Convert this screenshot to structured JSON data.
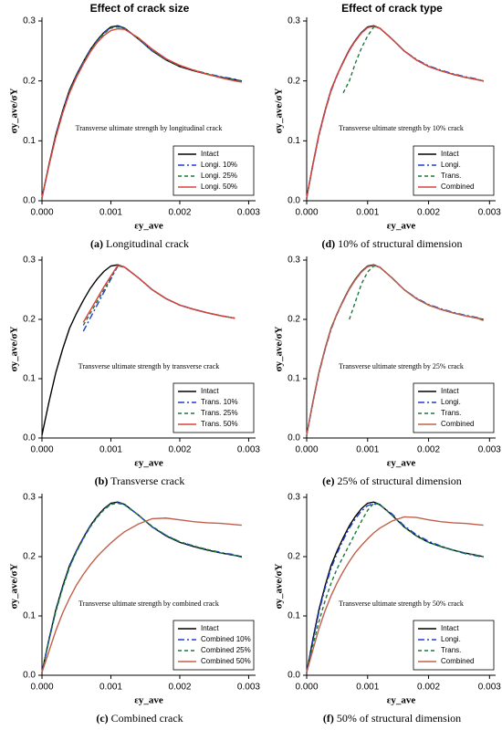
{
  "chart_data": [
    {
      "type": "line",
      "title": "Effect of crack size",
      "caption_label": "(a)",
      "caption": "Longitudinal crack",
      "annotation": "Transverse ultimate strength by longitudinal crack",
      "x_label": "εy_ave",
      "y_label": "σy_ave/σY",
      "legend": "lower right",
      "xlim": [
        0,
        0.0031
      ],
      "ylim": [
        0,
        0.3
      ],
      "xticks": [
        {
          "value": 0,
          "label": "0.000"
        },
        0.001,
        0.002,
        0.003
      ],
      "yticks": [
        {
          "value": 0,
          "label": "0.0"
        },
        0.1,
        0.2,
        0.3
      ],
      "x": [
        0,
        0.0001,
        0.0002,
        0.0003,
        0.0004,
        0.0005,
        0.0006,
        0.0007,
        0.0008,
        0.0009,
        0.001,
        0.0011,
        0.0012,
        0.0014,
        0.0016,
        0.0018,
        0.002,
        0.0022,
        0.0024,
        0.0026,
        0.0028,
        0.0029
      ],
      "series": [
        {
          "name": "Intact",
          "color": "#000000",
          "dash": "solid",
          "values": [
            0.005,
            0.06,
            0.11,
            0.15,
            0.185,
            0.21,
            0.232,
            0.252,
            0.268,
            0.281,
            0.29,
            0.292,
            0.288,
            0.27,
            0.25,
            0.235,
            0.224,
            0.217,
            0.211,
            0.206,
            0.202,
            0.2
          ]
        },
        {
          "name": "Longi. 10%",
          "color": "#1f3fd0",
          "dash": "dashdot",
          "values": [
            0.005,
            0.058,
            0.108,
            0.148,
            0.183,
            0.209,
            0.231,
            0.251,
            0.267,
            0.28,
            0.289,
            0.291,
            0.288,
            0.27,
            0.25,
            0.236,
            0.225,
            0.218,
            0.212,
            0.207,
            0.203,
            0.199
          ]
        },
        {
          "name": "Longi. 25%",
          "color": "#1a7a3a",
          "dash": "dashed",
          "values": [
            0.005,
            0.058,
            0.107,
            0.147,
            0.182,
            0.208,
            0.23,
            0.25,
            0.266,
            0.279,
            0.288,
            0.29,
            0.287,
            0.27,
            0.251,
            0.236,
            0.225,
            0.218,
            0.212,
            0.206,
            0.202,
            0.199
          ]
        },
        {
          "name": "Longi. 50%",
          "color": "#d9443a",
          "dash": "solid",
          "values": [
            0.005,
            0.058,
            0.106,
            0.146,
            0.18,
            0.206,
            0.228,
            0.248,
            0.264,
            0.276,
            0.284,
            0.287,
            0.286,
            0.272,
            0.253,
            0.237,
            0.226,
            0.218,
            0.211,
            0.205,
            0.2,
            0.198
          ]
        }
      ]
    },
    {
      "type": "line",
      "caption_label": "(b)",
      "caption": "Transverse crack",
      "annotation": "Transverse ultimate strength by transverse crack",
      "x_label": "εy_ave",
      "y_label": "σy_ave/σY",
      "legend": "lower right",
      "xlim": [
        0,
        0.0031
      ],
      "ylim": [
        0,
        0.3
      ],
      "xticks": [
        {
          "value": 0,
          "label": "0.000"
        },
        0.001,
        0.002,
        0.003
      ],
      "yticks": [
        {
          "value": 0,
          "label": "0.0"
        },
        0.1,
        0.2,
        0.3
      ],
      "x": [
        0,
        0.0001,
        0.0002,
        0.0003,
        0.0004,
        0.0005,
        0.0006,
        0.0007,
        0.0008,
        0.0009,
        0.001,
        0.0011,
        0.0012,
        0.0014,
        0.0016,
        0.0018,
        0.002,
        0.0022,
        0.0024,
        0.0026,
        0.0028,
        0.0029
      ],
      "series": [
        {
          "name": "Intact",
          "color": "#000000",
          "dash": "solid",
          "values": [
            0.005,
            0.06,
            0.11,
            0.15,
            0.185,
            0.21,
            0.232,
            0.252,
            0.268,
            0.281,
            0.29,
            0.292,
            0.288,
            0.27,
            0.25,
            0.235,
            0.224,
            0.217,
            0.211,
            0.206,
            0.202,
            null
          ]
        },
        {
          "name": "Trans. 10%",
          "color": "#1f3fd0",
          "dash": "dashdot",
          "values": [
            null,
            null,
            null,
            null,
            null,
            null,
            0.18,
            0.202,
            0.224,
            0.246,
            0.268,
            0.29,
            0.288,
            0.27,
            0.25,
            0.235,
            0.224,
            0.217,
            0.211,
            0.206,
            0.202,
            null
          ]
        },
        {
          "name": "Trans. 25%",
          "color": "#1a7a3a",
          "dash": "dashed",
          "values": [
            null,
            null,
            null,
            null,
            null,
            null,
            0.19,
            0.21,
            0.23,
            0.25,
            0.27,
            0.29,
            0.288,
            0.27,
            0.25,
            0.235,
            0.224,
            0.217,
            0.211,
            0.206,
            0.202,
            null
          ]
        },
        {
          "name": "Trans. 50%",
          "color": "#d9443a",
          "dash": "solid",
          "values": [
            null,
            null,
            null,
            null,
            null,
            null,
            0.195,
            0.215,
            0.235,
            0.255,
            0.273,
            0.291,
            0.288,
            0.27,
            0.25,
            0.235,
            0.224,
            0.217,
            0.211,
            0.206,
            0.202,
            null
          ]
        }
      ]
    },
    {
      "type": "line",
      "caption_label": "(c)",
      "caption": "Combined crack",
      "annotation": "Transverse ultimate strength by combined crack",
      "x_label": "εy_ave",
      "y_label": "σy_ave/σY",
      "legend": "lower right",
      "xlim": [
        0,
        0.0031
      ],
      "ylim": [
        0,
        0.3
      ],
      "xticks": [
        {
          "value": 0,
          "label": "0.000"
        },
        0.001,
        0.002,
        0.003
      ],
      "yticks": [
        {
          "value": 0,
          "label": "0.0"
        },
        0.1,
        0.2,
        0.3
      ],
      "x": [
        0,
        0.0001,
        0.0002,
        0.0003,
        0.0004,
        0.0005,
        0.0006,
        0.0007,
        0.0008,
        0.0009,
        0.001,
        0.0011,
        0.0012,
        0.0014,
        0.0016,
        0.0018,
        0.002,
        0.0022,
        0.0024,
        0.0026,
        0.0028,
        0.0029
      ],
      "series": [
        {
          "name": "Intact",
          "color": "#000000",
          "dash": "solid",
          "values": [
            0.005,
            0.06,
            0.11,
            0.15,
            0.185,
            0.21,
            0.232,
            0.252,
            0.268,
            0.281,
            0.29,
            0.292,
            0.288,
            0.27,
            0.25,
            0.235,
            0.224,
            0.217,
            0.211,
            0.206,
            0.202,
            0.2
          ]
        },
        {
          "name": "Combined 10%",
          "color": "#1f3fd0",
          "dash": "dashdot",
          "values": [
            0.005,
            0.058,
            0.108,
            0.148,
            0.183,
            0.209,
            0.231,
            0.251,
            0.267,
            0.28,
            0.289,
            0.291,
            0.288,
            0.27,
            0.25,
            0.236,
            0.225,
            0.218,
            0.212,
            0.207,
            0.203,
            0.199
          ]
        },
        {
          "name": "Combined 25%",
          "color": "#1a7a3a",
          "dash": "dashed",
          "values": [
            0.005,
            0.058,
            0.107,
            0.147,
            0.182,
            0.208,
            0.23,
            0.25,
            0.266,
            0.279,
            0.288,
            0.29,
            0.287,
            0.27,
            0.251,
            0.236,
            0.225,
            0.218,
            0.212,
            0.206,
            0.202,
            0.199
          ]
        },
        {
          "name": "Combined 50%",
          "color": "#c0604a",
          "dash": "solid",
          "values": [
            0.005,
            0.04,
            0.075,
            0.105,
            0.13,
            0.152,
            0.17,
            0.186,
            0.2,
            0.212,
            0.223,
            0.233,
            0.242,
            0.255,
            0.264,
            0.265,
            0.262,
            0.259,
            0.257,
            0.256,
            0.254,
            0.253
          ]
        }
      ]
    },
    {
      "type": "line",
      "title": "Effect of crack type",
      "caption_label": "(d)",
      "caption": "10% of structural dimension",
      "annotation": "Transverse ultimate strength by 10% crack",
      "x_label": "εy_ave",
      "y_label": "σy_ave/σY",
      "legend": "lower right",
      "xlim": [
        0,
        0.0031
      ],
      "ylim": [
        0,
        0.3
      ],
      "xticks": [
        {
          "value": 0,
          "label": "0.000"
        },
        0.001,
        0.002,
        0.003
      ],
      "yticks": [
        {
          "value": 0,
          "label": "0.0"
        },
        0.1,
        0.2,
        0.3
      ],
      "x": [
        0,
        0.0001,
        0.0002,
        0.0003,
        0.0004,
        0.0005,
        0.0006,
        0.0007,
        0.0008,
        0.0009,
        0.001,
        0.0011,
        0.0012,
        0.0014,
        0.0016,
        0.0018,
        0.002,
        0.0022,
        0.0024,
        0.0026,
        0.0028,
        0.0029
      ],
      "series": [
        {
          "name": "Intact",
          "color": "#000000",
          "dash": "solid",
          "values": [
            0.005,
            0.06,
            0.11,
            0.15,
            0.185,
            0.21,
            0.232,
            0.252,
            0.268,
            0.281,
            0.29,
            0.292,
            0.288,
            0.27,
            0.25,
            0.235,
            0.224,
            0.217,
            0.211,
            0.206,
            0.202,
            0.2
          ]
        },
        {
          "name": "Longi.",
          "color": "#1f3fd0",
          "dash": "dashdot",
          "values": [
            0.005,
            0.058,
            0.108,
            0.148,
            0.183,
            0.209,
            0.231,
            0.251,
            0.267,
            0.28,
            0.289,
            0.291,
            0.288,
            0.27,
            0.25,
            0.236,
            0.225,
            0.218,
            0.212,
            0.207,
            0.203,
            0.199
          ]
        },
        {
          "name": "Trans.",
          "color": "#1a7a3a",
          "dash": "dashed",
          "values": [
            null,
            null,
            null,
            null,
            null,
            null,
            0.18,
            0.2,
            0.23,
            0.255,
            0.275,
            0.29,
            0.288,
            0.27,
            0.25,
            0.235,
            0.224,
            0.217,
            0.211,
            0.206,
            0.202,
            0.2
          ]
        },
        {
          "name": "Combined",
          "color": "#d9443a",
          "dash": "solid",
          "values": [
            0.005,
            0.059,
            0.109,
            0.149,
            0.184,
            0.21,
            0.231,
            0.251,
            0.267,
            0.28,
            0.289,
            0.291,
            0.288,
            0.27,
            0.25,
            0.235,
            0.224,
            0.217,
            0.211,
            0.206,
            0.202,
            0.2
          ]
        }
      ]
    },
    {
      "type": "line",
      "caption_label": "(e)",
      "caption": "25% of structural dimension",
      "annotation": "Transverse ultimate strength by 25% crack",
      "x_label": "εy_ave",
      "y_label": "σy_ave/σY",
      "legend": "lower right",
      "xlim": [
        0,
        0.0031
      ],
      "ylim": [
        0,
        0.3
      ],
      "xticks": [
        {
          "value": 0,
          "label": "0.000"
        },
        0.001,
        0.002,
        0.003
      ],
      "yticks": [
        {
          "value": 0,
          "label": "0.0"
        },
        0.1,
        0.2,
        0.3
      ],
      "x": [
        0,
        0.0001,
        0.0002,
        0.0003,
        0.0004,
        0.0005,
        0.0006,
        0.0007,
        0.0008,
        0.0009,
        0.001,
        0.0011,
        0.0012,
        0.0014,
        0.0016,
        0.0018,
        0.002,
        0.0022,
        0.0024,
        0.0026,
        0.0028,
        0.0029
      ],
      "series": [
        {
          "name": "Intact",
          "color": "#000000",
          "dash": "solid",
          "values": [
            0.005,
            0.06,
            0.11,
            0.15,
            0.185,
            0.21,
            0.232,
            0.252,
            0.268,
            0.281,
            0.29,
            0.292,
            0.288,
            0.27,
            0.25,
            0.235,
            0.224,
            0.217,
            0.211,
            0.206,
            0.202,
            0.2
          ]
        },
        {
          "name": "Longi.",
          "color": "#1f3fd0",
          "dash": "dashdot",
          "values": [
            0.005,
            0.058,
            0.108,
            0.148,
            0.183,
            0.209,
            0.231,
            0.251,
            0.267,
            0.28,
            0.289,
            0.291,
            0.288,
            0.27,
            0.25,
            0.236,
            0.225,
            0.218,
            0.212,
            0.207,
            0.203,
            0.199
          ]
        },
        {
          "name": "Trans.",
          "color": "#1a7a3a",
          "dash": "dashed",
          "values": [
            null,
            null,
            null,
            null,
            null,
            null,
            null,
            0.2,
            0.23,
            0.26,
            0.28,
            0.29,
            0.288,
            0.27,
            0.25,
            0.235,
            0.224,
            0.217,
            0.211,
            0.206,
            0.202,
            0.2
          ]
        },
        {
          "name": "Combined",
          "color": "#c0604a",
          "dash": "solid",
          "values": [
            0.005,
            0.059,
            0.109,
            0.149,
            0.184,
            0.21,
            0.231,
            0.251,
            0.267,
            0.28,
            0.289,
            0.291,
            0.288,
            0.27,
            0.25,
            0.235,
            0.224,
            0.217,
            0.211,
            0.206,
            0.202,
            0.198
          ]
        }
      ]
    },
    {
      "type": "line",
      "caption_label": "(f)",
      "caption": "50% of structural dimension",
      "annotation": "Transverse ultimate strength by 50% crack",
      "x_label": "εy_ave",
      "y_label": "σy_ave/σY",
      "legend": "lower right",
      "xlim": [
        0,
        0.0031
      ],
      "ylim": [
        0,
        0.3
      ],
      "xticks": [
        {
          "value": 0,
          "label": "0.000"
        },
        0.001,
        0.002,
        0.003
      ],
      "yticks": [
        {
          "value": 0,
          "label": "0.0"
        },
        0.1,
        0.2,
        0.3
      ],
      "x": [
        0,
        0.0001,
        0.0002,
        0.0003,
        0.0004,
        0.0005,
        0.0006,
        0.0007,
        0.0008,
        0.0009,
        0.001,
        0.0011,
        0.0012,
        0.0014,
        0.0016,
        0.0018,
        0.002,
        0.0022,
        0.0024,
        0.0026,
        0.0028,
        0.0029
      ],
      "series": [
        {
          "name": "Intact",
          "color": "#000000",
          "dash": "solid",
          "values": [
            0.005,
            0.06,
            0.11,
            0.15,
            0.185,
            0.21,
            0.232,
            0.252,
            0.268,
            0.281,
            0.29,
            0.292,
            0.288,
            0.27,
            0.25,
            0.235,
            0.224,
            0.217,
            0.211,
            0.206,
            0.202,
            0.2
          ]
        },
        {
          "name": "Longi.",
          "color": "#1f3fd0",
          "dash": "dashdot",
          "values": [
            0.005,
            0.057,
            0.106,
            0.146,
            0.18,
            0.206,
            0.228,
            0.248,
            0.264,
            0.277,
            0.286,
            0.289,
            0.287,
            0.272,
            0.252,
            0.237,
            0.226,
            0.218,
            0.211,
            0.205,
            0.201,
            0.199
          ]
        },
        {
          "name": "Trans.",
          "color": "#1a7a3a",
          "dash": "dashed",
          "values": [
            0.005,
            0.05,
            0.09,
            0.125,
            0.155,
            0.18,
            0.2,
            0.22,
            0.24,
            0.26,
            0.278,
            0.29,
            0.288,
            0.27,
            0.25,
            0.235,
            0.224,
            0.217,
            0.211,
            0.206,
            0.202,
            0.2
          ]
        },
        {
          "name": "Combined",
          "color": "#c0604a",
          "dash": "solid",
          "values": [
            0.005,
            0.042,
            0.078,
            0.108,
            0.134,
            0.156,
            0.175,
            0.192,
            0.207,
            0.219,
            0.23,
            0.24,
            0.248,
            0.26,
            0.267,
            0.266,
            0.262,
            0.259,
            0.257,
            0.256,
            0.254,
            0.253
          ]
        }
      ]
    }
  ]
}
